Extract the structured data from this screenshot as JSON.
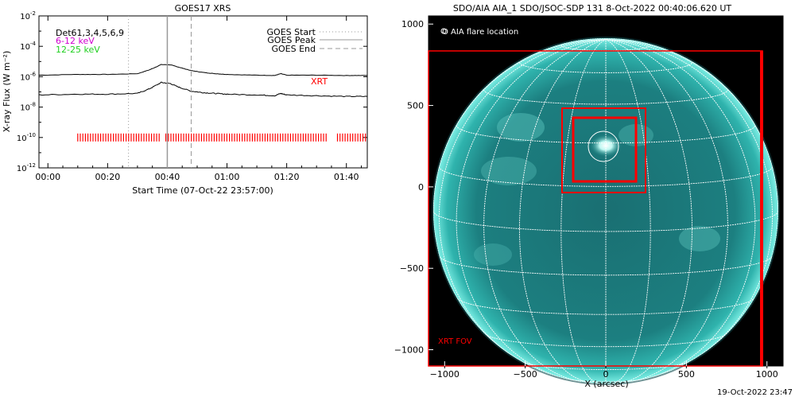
{
  "timestamp": "19-Oct-2022 23:47",
  "goes": {
    "title": "GOES17 XRS",
    "xlabel": "Start Time (07-Oct-22 23:57:00)",
    "ylabel": "X-ray Flux (W m⁻²)",
    "xticks": [
      "00:00",
      "00:20",
      "00:40",
      "01:00",
      "01:20",
      "01:40"
    ],
    "yticks": [
      {
        "base": "10",
        "exp": "-2",
        "v": -2
      },
      {
        "base": "10",
        "exp": "-4",
        "v": -4
      },
      {
        "base": "10",
        "exp": "-6",
        "v": -6
      },
      {
        "base": "10",
        "exp": "-8",
        "v": -8
      },
      {
        "base": "10",
        "exp": "-10",
        "v": -10
      },
      {
        "base": "10",
        "exp": "-12",
        "v": -12
      }
    ],
    "det_label": "Det61,3,4,5,6,9",
    "band1": "6-12 keV",
    "band2": "12-25 keV",
    "legend": [
      "GOES Start",
      "GOES Peak",
      "GOES End"
    ],
    "xrt_label": "XRT",
    "colors": {
      "band1": "#d000d0",
      "band2": "#20d020",
      "xrt": "#ff0000"
    }
  },
  "aia": {
    "title": "SDO/AIA AIA_1 SDO/JSOC-SDP 131  8-Oct-2022 00:40:06.620 UT",
    "legend": "O AIA flare location",
    "fov_label": "XRT FOV",
    "xlabel": "X (arcsec)",
    "xticks": [
      "−1000",
      "−500",
      "0",
      "500",
      "1000"
    ],
    "yticks": [
      "1000",
      "500",
      "0",
      "−500",
      "−1000"
    ],
    "colors": {
      "disk": "#1f8f8c",
      "fov": "#ff0000",
      "grid": "#ffffff"
    }
  },
  "chart_data": [
    {
      "type": "line",
      "title": "GOES17 XRS",
      "xlabel": "Start Time (07-Oct-22 23:57:00)",
      "ylabel": "X-ray Flux (W m⁻²)",
      "x_unit": "minutes",
      "ylim_log10": [
        -12,
        -2
      ],
      "xlim": [
        -3,
        107
      ],
      "yscale": "log",
      "series": [
        {
          "x": [
            -3,
            10,
            20,
            30,
            34,
            38,
            41,
            44,
            48,
            52,
            56,
            60,
            70,
            76,
            78,
            80,
            90,
            100,
            107
          ],
          "y_log10": [
            -5.9,
            -5.85,
            -5.85,
            -5.8,
            -5.55,
            -5.2,
            -5.22,
            -5.38,
            -5.6,
            -5.72,
            -5.8,
            -5.85,
            -5.9,
            -5.92,
            -5.8,
            -5.9,
            -5.9,
            -5.92,
            -5.92
          ]
        },
        {
          "x": [
            -3,
            10,
            20,
            30,
            34,
            38,
            41,
            44,
            48,
            52,
            56,
            60,
            70,
            76,
            78,
            80,
            90,
            100,
            107
          ],
          "y_log10": [
            -7.2,
            -7.15,
            -7.15,
            -7.1,
            -6.8,
            -6.38,
            -6.45,
            -6.7,
            -6.95,
            -7.05,
            -7.1,
            -7.15,
            -7.2,
            -7.25,
            -7.1,
            -7.2,
            -7.25,
            -7.3,
            -7.3
          ]
        }
      ],
      "markers": {
        "goes_start": 27,
        "goes_peak": 40,
        "goes_end": 48
      },
      "xrt_intervals": [
        [
          10,
          37.5
        ],
        [
          39.5,
          94
        ],
        [
          97,
          107
        ]
      ]
    },
    {
      "type": "scatter",
      "title": "SDO/AIA AIA_1 SDO/JSOC-SDP 131  8-Oct-2022 00:40:06.620 UT",
      "xlabel": "X (arcsec)",
      "xlim": [
        -1100,
        1100
      ],
      "ylim": [
        -1100,
        1050
      ],
      "solar_radius": 985,
      "flare_location": [
        0,
        270
      ],
      "boxes": [
        {
          "name": "XRT FOV",
          "x": [
            -1000,
            990
          ],
          "y": [
            -1095,
            890
          ]
        },
        {
          "name": "box_outer",
          "x": [
            -260,
            260
          ],
          "y": [
            -15,
            510
          ]
        },
        {
          "name": "box_inner",
          "x": [
            -200,
            200
          ],
          "y": [
            55,
            455
          ]
        }
      ]
    }
  ]
}
